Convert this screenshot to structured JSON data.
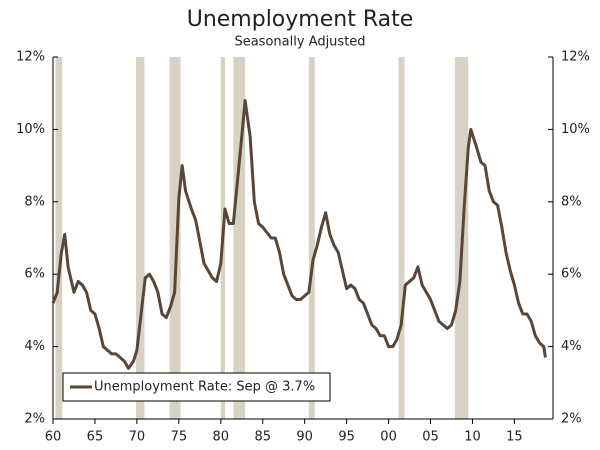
{
  "chart_data": {
    "type": "line",
    "title": "Unemployment Rate",
    "subtitle": "Seasonally Adjusted",
    "x": [
      1960.0,
      1960.5,
      1961.0,
      1961.4,
      1961.8,
      1962.5,
      1963.0,
      1963.5,
      1964.0,
      1964.5,
      1965.0,
      1965.5,
      1966.0,
      1967.0,
      1967.5,
      1968.0,
      1968.5,
      1969.0,
      1969.6,
      1970.0,
      1970.5,
      1971.0,
      1971.5,
      1972.0,
      1972.5,
      1973.0,
      1973.5,
      1974.0,
      1974.5,
      1975.0,
      1975.4,
      1975.8,
      1976.5,
      1977.0,
      1977.5,
      1978.0,
      1978.5,
      1979.0,
      1979.5,
      1980.0,
      1980.5,
      1981.0,
      1981.5,
      1982.0,
      1982.5,
      1982.9,
      1983.5,
      1984.0,
      1984.5,
      1985.0,
      1986.0,
      1986.5,
      1987.0,
      1987.5,
      1988.0,
      1988.5,
      1989.0,
      1989.5,
      1990.0,
      1990.5,
      1991.0,
      1991.5,
      1992.0,
      1992.5,
      1993.0,
      1993.5,
      1994.0,
      1994.5,
      1995.0,
      1995.5,
      1996.0,
      1996.5,
      1997.0,
      1997.5,
      1998.0,
      1998.5,
      1999.0,
      1999.5,
      2000.0,
      2000.5,
      2001.0,
      2001.5,
      2002.0,
      2002.5,
      2003.0,
      2003.5,
      2004.0,
      2004.5,
      2005.0,
      2005.5,
      2006.0,
      2006.5,
      2007.0,
      2007.5,
      2008.0,
      2008.5,
      2009.0,
      2009.5,
      2009.8,
      2010.5,
      2011.0,
      2011.5,
      2012.0,
      2012.5,
      2013.0,
      2013.5,
      2014.0,
      2014.5,
      2015.0,
      2015.5,
      2016.0,
      2016.5,
      2017.0,
      2017.5,
      2018.0,
      2018.5,
      2018.7
    ],
    "series": [
      {
        "name": "Unemployment Rate: Sep @ 3.7%",
        "color": "#5a4636",
        "values": [
          5.2,
          5.5,
          6.6,
          7.1,
          6.2,
          5.5,
          5.8,
          5.7,
          5.5,
          5.0,
          4.9,
          4.5,
          4.0,
          3.8,
          3.8,
          3.7,
          3.6,
          3.4,
          3.6,
          3.9,
          4.9,
          5.9,
          6.0,
          5.8,
          5.5,
          4.9,
          4.8,
          5.1,
          5.5,
          8.1,
          9.0,
          8.3,
          7.8,
          7.5,
          6.9,
          6.3,
          6.1,
          5.9,
          5.8,
          6.3,
          7.8,
          7.4,
          7.4,
          8.6,
          9.8,
          10.8,
          9.8,
          8.0,
          7.4,
          7.3,
          7.0,
          7.0,
          6.6,
          6.0,
          5.7,
          5.4,
          5.3,
          5.3,
          5.4,
          5.5,
          6.4,
          6.8,
          7.3,
          7.7,
          7.1,
          6.8,
          6.6,
          6.1,
          5.6,
          5.7,
          5.6,
          5.3,
          5.2,
          4.9,
          4.6,
          4.5,
          4.3,
          4.3,
          4.0,
          4.0,
          4.2,
          4.6,
          5.7,
          5.8,
          5.9,
          6.2,
          5.7,
          5.5,
          5.3,
          5.0,
          4.7,
          4.6,
          4.5,
          4.6,
          5.0,
          5.8,
          7.8,
          9.5,
          10.0,
          9.5,
          9.1,
          9.0,
          8.3,
          8.0,
          7.9,
          7.3,
          6.6,
          6.1,
          5.7,
          5.2,
          4.9,
          4.9,
          4.7,
          4.3,
          4.1,
          4.0,
          3.7
        ]
      }
    ],
    "recessions": [
      [
        1960.3,
        1961.1
      ],
      [
        1969.9,
        1970.9
      ],
      [
        1973.9,
        1975.2
      ],
      [
        1980.0,
        1980.5
      ],
      [
        1981.5,
        1982.9
      ],
      [
        1990.5,
        1991.2
      ],
      [
        2001.2,
        2001.9
      ],
      [
        2007.9,
        2009.5
      ]
    ],
    "recession_color": "#d6d2c4",
    "xlim": [
      1960,
      2019.6
    ],
    "xticks": [
      {
        "value": 1960,
        "label": "60"
      },
      {
        "value": 1965,
        "label": "65"
      },
      {
        "value": 1970,
        "label": "70"
      },
      {
        "value": 1975,
        "label": "75"
      },
      {
        "value": 1980,
        "label": "80"
      },
      {
        "value": 1985,
        "label": "85"
      },
      {
        "value": 1990,
        "label": "90"
      },
      {
        "value": 1995,
        "label": "95"
      },
      {
        "value": 2000,
        "label": "00"
      },
      {
        "value": 2005,
        "label": "05"
      },
      {
        "value": 2010,
        "label": "10"
      },
      {
        "value": 2015,
        "label": "15"
      }
    ],
    "ylim": [
      2,
      12
    ],
    "yticks": [
      {
        "value": 2,
        "label": "2%"
      },
      {
        "value": 4,
        "label": "4%"
      },
      {
        "value": 6,
        "label": "6%"
      },
      {
        "value": 8,
        "label": "8%"
      },
      {
        "value": 10,
        "label": "10%"
      },
      {
        "value": 12,
        "label": "12%"
      }
    ],
    "y2lim": [
      2,
      12
    ],
    "y2ticks": [
      {
        "value": 2,
        "label": "2%"
      },
      {
        "value": 4,
        "label": "4%"
      },
      {
        "value": 6,
        "label": "6%"
      },
      {
        "value": 8,
        "label": "8%"
      },
      {
        "value": 10,
        "label": "10%"
      },
      {
        "value": 12,
        "label": "12%"
      }
    ],
    "legend": "lower left"
  }
}
